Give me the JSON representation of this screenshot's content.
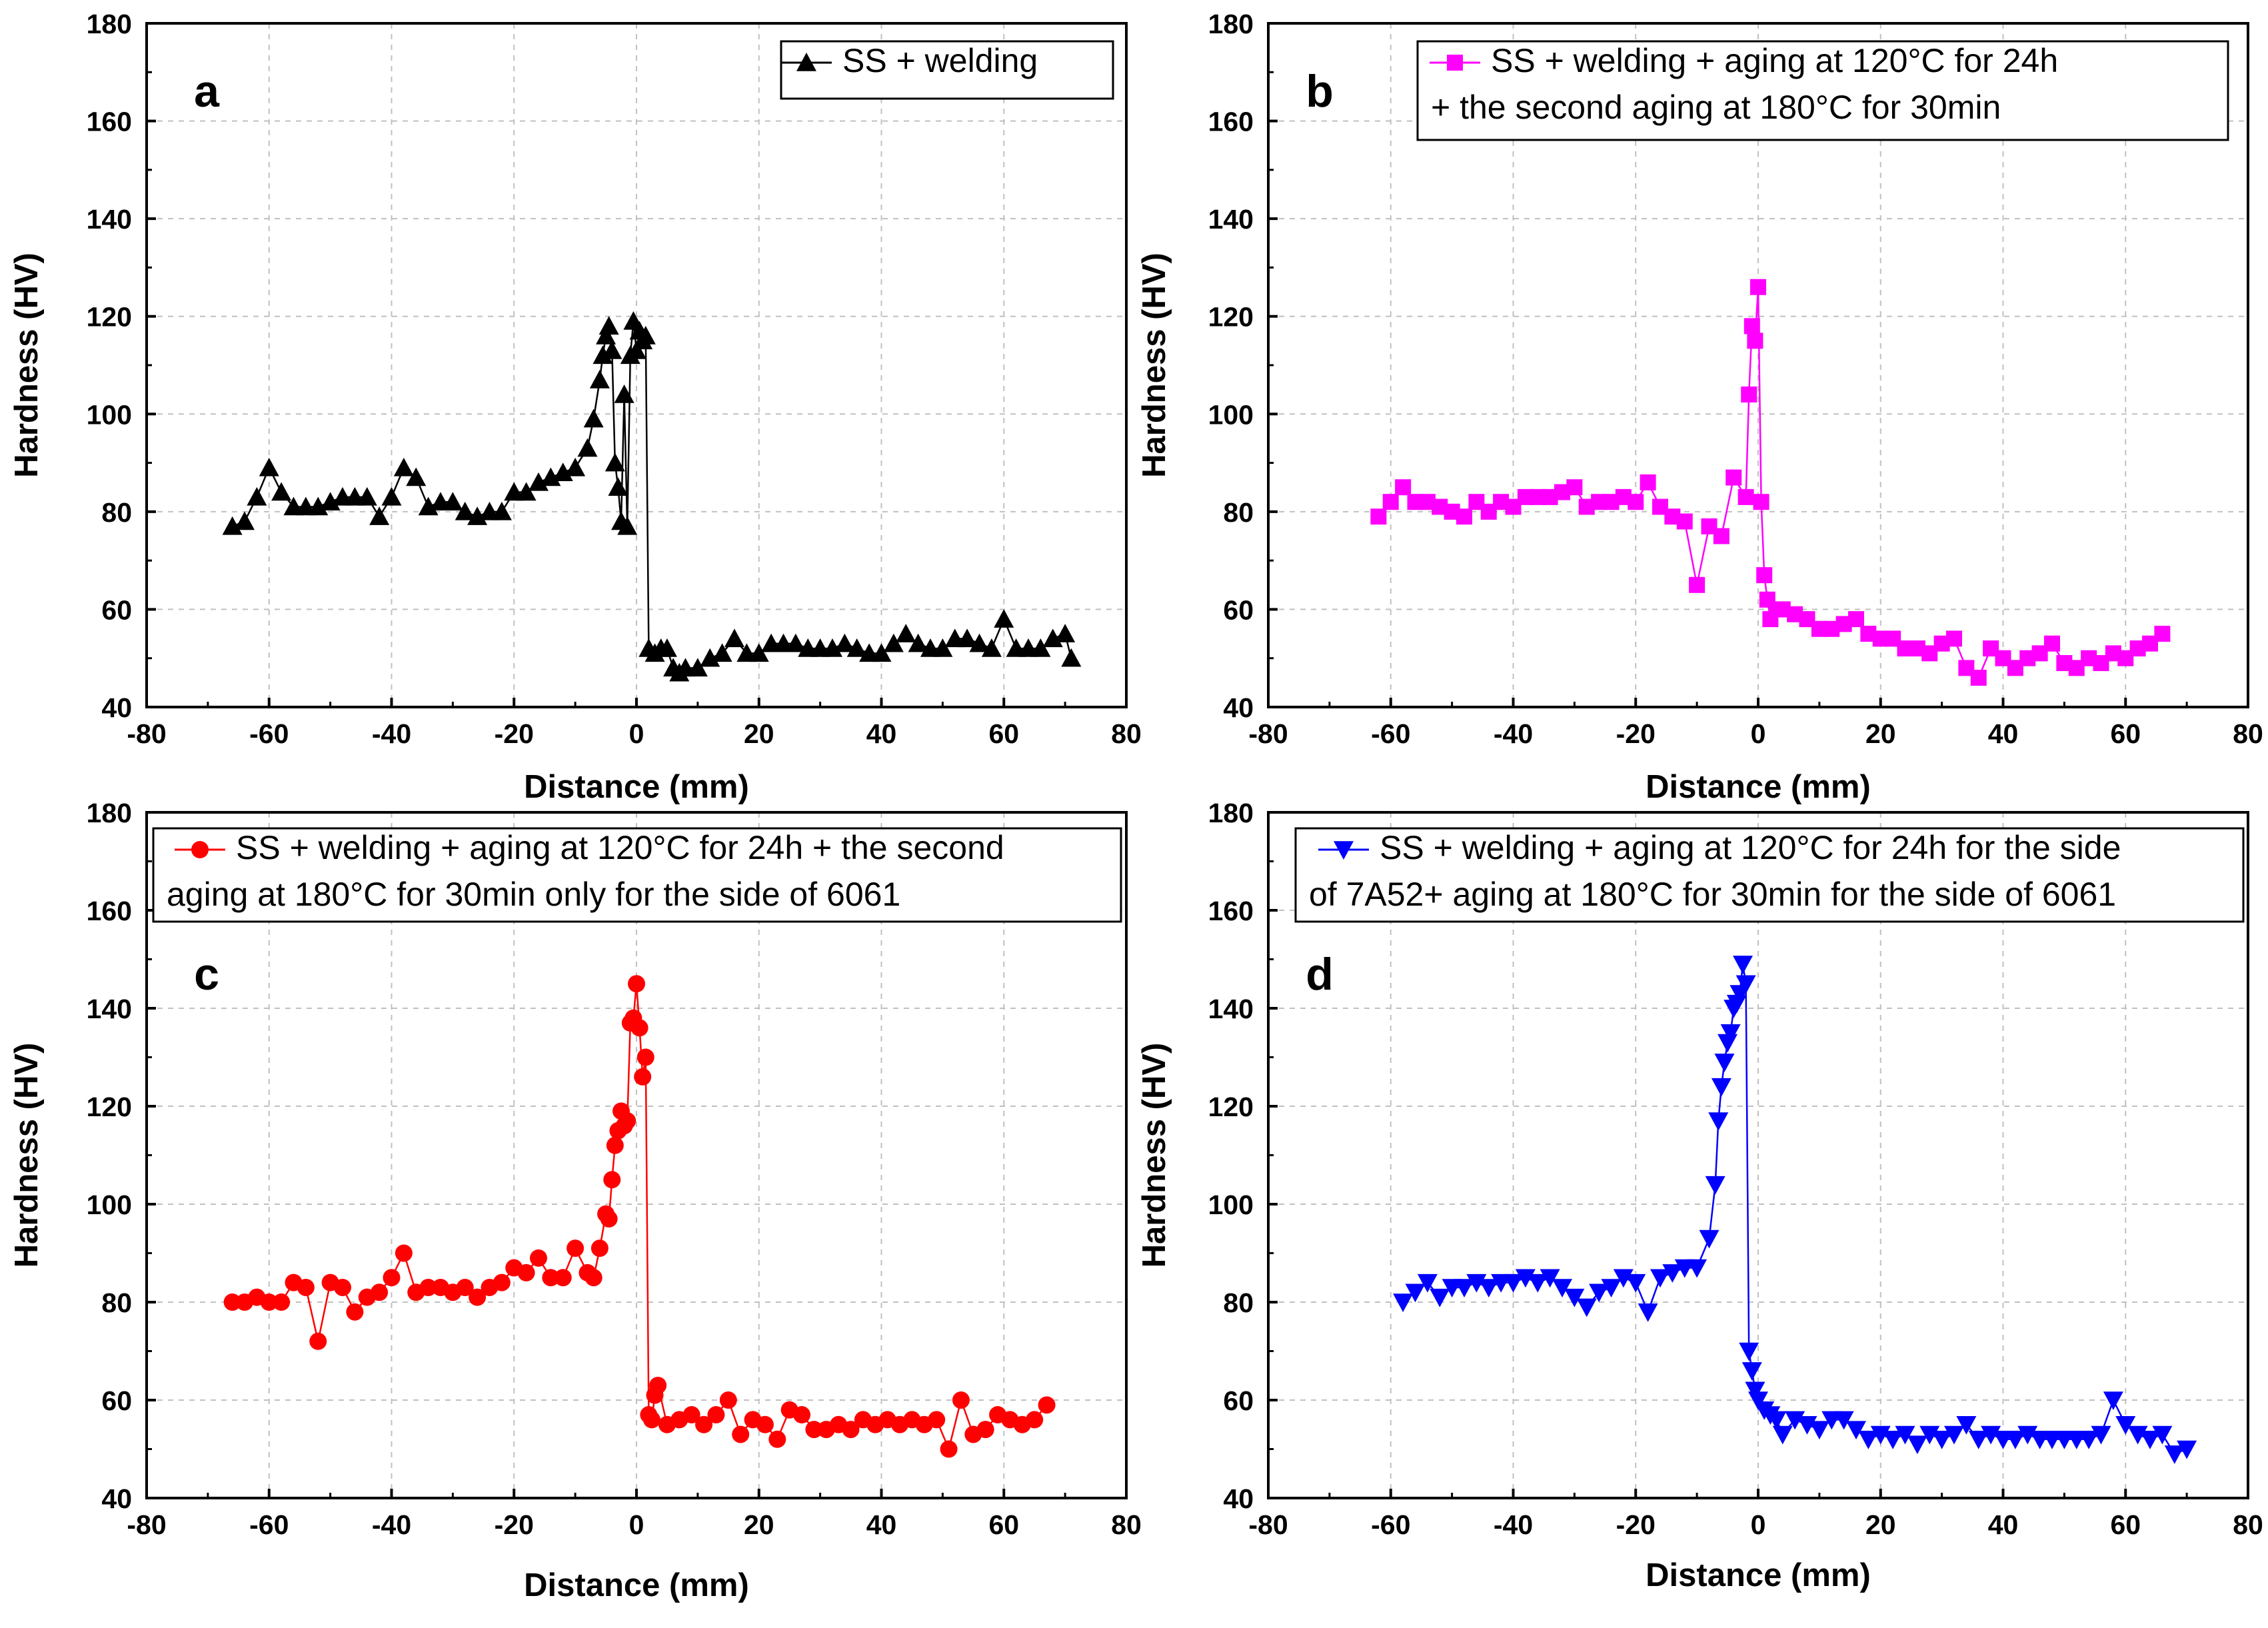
{
  "chart_data": [
    {
      "type": "line",
      "panel_label": "a",
      "title": "",
      "xlabel": "Distance (mm)",
      "ylabel": "Hardness (HV)",
      "xlim": [
        -80,
        80
      ],
      "ylim": [
        40,
        180
      ],
      "x_ticks": [
        -80,
        -60,
        -40,
        -20,
        0,
        20,
        40,
        60,
        80
      ],
      "y_ticks": [
        40,
        60,
        80,
        100,
        120,
        140,
        160,
        180
      ],
      "x_tick_labels": [
        "-80",
        "-60",
        "-40",
        "-20",
        "0",
        "20",
        "40",
        "60",
        "80"
      ],
      "y_tick_labels": [
        "40",
        "60",
        "80",
        "100",
        "120",
        "140",
        "160",
        "180"
      ],
      "grid": true,
      "legend_position": "top-right",
      "series": [
        {
          "name": "SS + welding",
          "legend_lines": [
            "SS + welding"
          ],
          "color": "#000000",
          "marker": "triangle-up",
          "x": [
            -66,
            -64,
            -62,
            -60,
            -58,
            -56,
            -54,
            -52,
            -50,
            -48,
            -46,
            -44,
            -42,
            -40,
            -38,
            -36,
            -34,
            -32,
            -30,
            -28,
            -26,
            -24,
            -22,
            -20,
            -18,
            -16,
            -14,
            -12,
            -10,
            -8,
            -7,
            -6,
            -5.5,
            -5,
            -4.5,
            -4,
            -3.5,
            -3,
            -2.5,
            -2,
            -1.5,
            -1,
            -0.5,
            0,
            0.5,
            1,
            1.5,
            2,
            3,
            4,
            5,
            6,
            7,
            8,
            10,
            12,
            14,
            16,
            18,
            20,
            22,
            24,
            26,
            28,
            30,
            32,
            34,
            36,
            38,
            40,
            42,
            44,
            46,
            48,
            50,
            52,
            54,
            56,
            58,
            60,
            62,
            64,
            66,
            68,
            70,
            71
          ],
          "values": [
            77,
            78,
            83,
            89,
            84,
            81,
            81,
            81,
            82,
            83,
            83,
            83,
            79,
            83,
            89,
            87,
            81,
            82,
            82,
            80,
            79,
            80,
            80,
            84,
            84,
            86,
            87,
            88,
            89,
            93,
            99,
            107,
            112,
            116,
            118,
            113,
            90,
            85,
            78,
            104,
            77,
            112,
            119,
            113,
            117,
            115,
            116,
            52,
            51,
            52,
            52,
            48,
            47,
            48,
            48,
            50,
            51,
            54,
            51,
            51,
            53,
            53,
            53,
            52,
            52,
            52,
            53,
            52,
            51,
            51,
            53,
            55,
            53,
            52,
            52,
            54,
            54,
            53,
            52,
            58,
            52,
            52,
            52,
            54,
            55,
            50
          ]
        }
      ]
    },
    {
      "type": "line",
      "panel_label": "b",
      "title": "",
      "xlabel": "Distance (mm)",
      "ylabel": "Hardness (HV)",
      "xlim": [
        -80,
        80
      ],
      "ylim": [
        40,
        180
      ],
      "x_ticks": [
        -80,
        -60,
        -40,
        -20,
        0,
        20,
        40,
        60,
        80
      ],
      "y_ticks": [
        40,
        60,
        80,
        100,
        120,
        140,
        160,
        180
      ],
      "x_tick_labels": [
        "-80",
        "-60",
        "-40",
        "-20",
        "0",
        "20",
        "40",
        "60",
        "80"
      ],
      "y_tick_labels": [
        "40",
        "60",
        "80",
        "100",
        "120",
        "140",
        "160",
        "180"
      ],
      "grid": true,
      "legend_position": "top-right",
      "series": [
        {
          "name": "SS + welding + aging at 120°C for 24h + the second aging at 180°C for 30min",
          "legend_lines": [
            "SS + welding + aging at 120°C for 24h",
            "+ the second aging at 180°C for 30min"
          ],
          "color": "#ff00ff",
          "marker": "square",
          "x": [
            -62,
            -60,
            -58,
            -56,
            -54,
            -52,
            -50,
            -48,
            -46,
            -44,
            -42,
            -40,
            -38,
            -36,
            -34,
            -32,
            -30,
            -28,
            -26,
            -24,
            -22,
            -20,
            -18,
            -16,
            -14,
            -12,
            -10,
            -8,
            -6,
            -4,
            -2,
            -1.5,
            -1,
            -0.5,
            0,
            0.5,
            1,
            1.5,
            2,
            3,
            4,
            6,
            8,
            10,
            12,
            14,
            16,
            18,
            20,
            22,
            24,
            26,
            28,
            30,
            32,
            34,
            36,
            38,
            40,
            42,
            44,
            46,
            48,
            50,
            52,
            54,
            56,
            58,
            60,
            62,
            64,
            66
          ],
          "values": [
            79,
            82,
            85,
            82,
            82,
            81,
            80,
            79,
            82,
            80,
            82,
            81,
            83,
            83,
            83,
            84,
            85,
            81,
            82,
            82,
            83,
            82,
            86,
            81,
            79,
            78,
            65,
            77,
            75,
            87,
            83,
            104,
            118,
            115,
            126,
            82,
            67,
            62,
            58,
            60,
            60,
            59,
            58,
            56,
            56,
            57,
            58,
            55,
            54,
            54,
            52,
            52,
            51,
            53,
            54,
            48,
            46,
            52,
            50,
            48,
            50,
            51,
            53,
            49,
            48,
            50,
            49,
            51,
            50,
            52,
            53,
            55
          ]
        }
      ]
    },
    {
      "type": "line",
      "panel_label": "c",
      "title": "",
      "xlabel": "Distance (mm)",
      "ylabel": "Hardness (HV)",
      "xlim": [
        -80,
        80
      ],
      "ylim": [
        40,
        180
      ],
      "x_ticks": [
        -80,
        -60,
        -40,
        -20,
        0,
        20,
        40,
        60,
        80
      ],
      "y_ticks": [
        40,
        60,
        80,
        100,
        120,
        140,
        160,
        180
      ],
      "x_tick_labels": [
        "-80",
        "-60",
        "-40",
        "-20",
        "0",
        "20",
        "40",
        "60",
        "80"
      ],
      "y_tick_labels": [
        "40",
        "60",
        "80",
        "100",
        "120",
        "140",
        "160",
        "180"
      ],
      "grid": true,
      "legend_position": "top",
      "series": [
        {
          "name": "SS + welding + aging at 120°C for 24h + the second aging at 180°C for 30min only for the side of 6061",
          "legend_lines": [
            "SS + welding + aging at 120°C for 24h + the second",
            "aging at 180°C for 30min only for the side of 6061"
          ],
          "color": "#ff0000",
          "marker": "circle",
          "x": [
            -66,
            -64,
            -62,
            -60,
            -58,
            -56,
            -54,
            -52,
            -50,
            -48,
            -46,
            -44,
            -42,
            -40,
            -38,
            -36,
            -34,
            -32,
            -30,
            -28,
            -26,
            -24,
            -22,
            -20,
            -18,
            -16,
            -14,
            -12,
            -10,
            -8,
            -7,
            -6,
            -5,
            -4.5,
            -4,
            -3.5,
            -3,
            -2.5,
            -2,
            -1.5,
            -1,
            -0.5,
            0,
            0.5,
            1,
            1.5,
            2,
            2.5,
            3,
            3.5,
            5,
            7,
            9,
            11,
            13,
            15,
            17,
            19,
            21,
            23,
            25,
            27,
            29,
            31,
            33,
            35,
            37,
            39,
            41,
            43,
            45,
            47,
            49,
            51,
            53,
            55,
            57,
            59,
            61,
            63,
            65,
            67
          ],
          "values": [
            80,
            80,
            81,
            80,
            80,
            84,
            83,
            72,
            84,
            83,
            78,
            81,
            82,
            85,
            90,
            82,
            83,
            83,
            82,
            83,
            81,
            83,
            84,
            87,
            86,
            89,
            85,
            85,
            91,
            86,
            85,
            91,
            98,
            97,
            105,
            112,
            115,
            119,
            116,
            117,
            137,
            138,
            145,
            136,
            126,
            130,
            57,
            56,
            61,
            63,
            55,
            56,
            57,
            55,
            57,
            60,
            53,
            56,
            55,
            52,
            58,
            57,
            54,
            54,
            55,
            54,
            56,
            55,
            56,
            55,
            56,
            55,
            56,
            50,
            60,
            53,
            54,
            57,
            56,
            55,
            56,
            59
          ]
        }
      ]
    },
    {
      "type": "line",
      "panel_label": "d",
      "title": "",
      "xlabel": "Distance (mm)",
      "ylabel": "Hardness (HV)",
      "xlim": [
        -80,
        80
      ],
      "ylim": [
        40,
        180
      ],
      "x_ticks": [
        -80,
        -60,
        -40,
        -20,
        0,
        20,
        40,
        60,
        80
      ],
      "y_ticks": [
        40,
        60,
        80,
        100,
        120,
        140,
        160,
        180
      ],
      "x_tick_labels": [
        "-80",
        "-60",
        "-40",
        "-20",
        "0",
        "20",
        "40",
        "60",
        "80"
      ],
      "y_tick_labels": [
        "40",
        "60",
        "80",
        "100",
        "120",
        "140",
        "160",
        "180"
      ],
      "grid": true,
      "legend_position": "top",
      "series": [
        {
          "name": "SS + welding + aging at 120°C for 24h for the side of 7A52+ aging at 180°C for 30min for the side of 6061",
          "legend_lines": [
            "SS + welding + aging at 120°C for 24h for the side",
            "of 7A52+ aging at 180°C for 30min for the side of 6061"
          ],
          "color": "#0000ff",
          "marker": "triangle-down",
          "x": [
            -58,
            -56,
            -54,
            -52,
            -50,
            -48,
            -46,
            -44,
            -42,
            -40,
            -38,
            -36,
            -34,
            -32,
            -30,
            -28,
            -26,
            -24,
            -22,
            -20,
            -18,
            -16,
            -14,
            -12,
            -10,
            -8,
            -7,
            -6.5,
            -6,
            -5.5,
            -5,
            -4.5,
            -4,
            -3.5,
            -3,
            -2.5,
            -2,
            -1.5,
            -1,
            -0.5,
            0,
            1,
            2,
            3,
            4,
            6,
            8,
            10,
            12,
            14,
            16,
            18,
            20,
            22,
            24,
            26,
            28,
            30,
            32,
            34,
            36,
            38,
            40,
            42,
            44,
            46,
            48,
            50,
            52,
            54,
            56,
            58,
            60,
            62,
            64,
            66,
            68,
            70
          ],
          "values": [
            80,
            82,
            84,
            81,
            83,
            83,
            84,
            83,
            84,
            84,
            85,
            84,
            85,
            83,
            81,
            79,
            82,
            83,
            85,
            84,
            78,
            85,
            86,
            87,
            87,
            93,
            104,
            117,
            124,
            129,
            133,
            135,
            140,
            141,
            143,
            149,
            145,
            70,
            66,
            62,
            60,
            58,
            57,
            56,
            53,
            56,
            55,
            54,
            56,
            56,
            54,
            52,
            53,
            52,
            53,
            51,
            53,
            52,
            53,
            55,
            52,
            53,
            52,
            52,
            53,
            52,
            52,
            52,
            52,
            52,
            53,
            60,
            55,
            53,
            52,
            53,
            49,
            50
          ]
        }
      ]
    }
  ]
}
